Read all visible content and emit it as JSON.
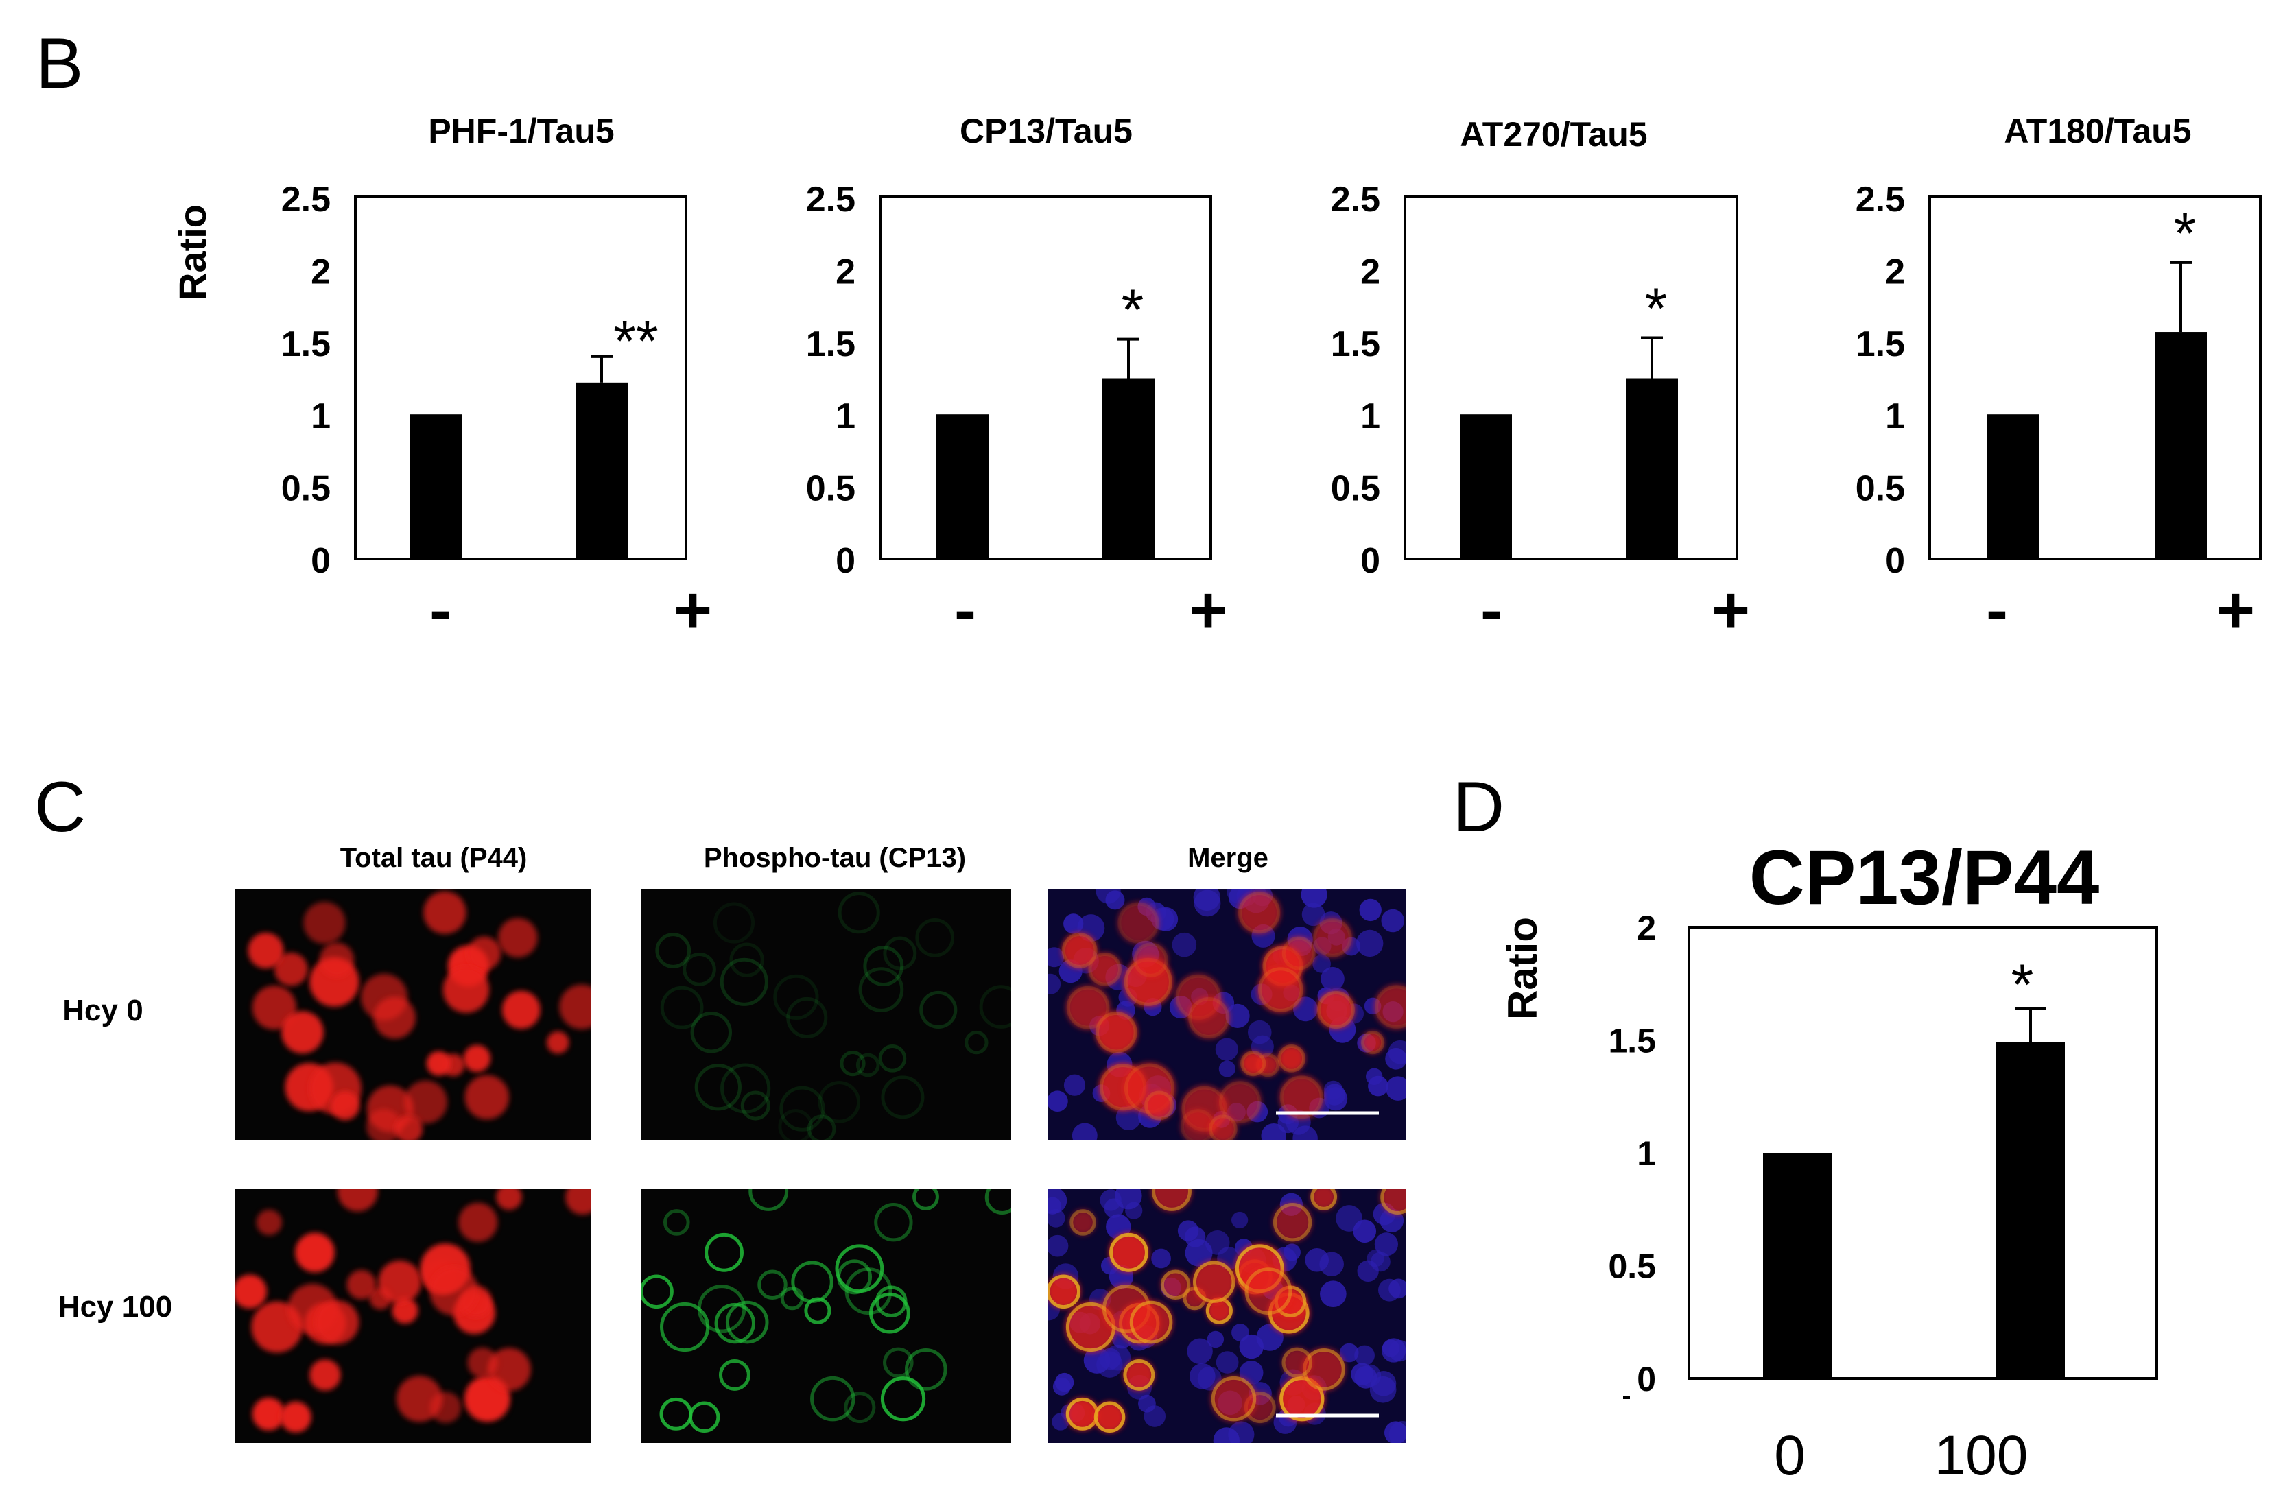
{
  "panels": {
    "b": {
      "letter": "B",
      "ylabel": "Ratio",
      "charts": [
        {
          "title": "PHF-1/Tau5",
          "significance": "**"
        },
        {
          "title": "CP13/Tau5",
          "significance": "*"
        },
        {
          "title": "AT270/Tau5",
          "significance": "*"
        },
        {
          "title": "AT180/Tau5",
          "significance": "*"
        }
      ]
    },
    "c": {
      "letter": "C",
      "columns": [
        "Total tau (P44)",
        "Phospho-tau (CP13)",
        "Merge"
      ],
      "rows": [
        "Hcy 0",
        "Hcy 100"
      ]
    },
    "d": {
      "letter": "D",
      "title": "CP13/P44",
      "ylabel": "Ratio",
      "significance": "*"
    }
  },
  "colors": {
    "bar": "#000000",
    "red_channel": "#e8231e",
    "green_channel": "#22c23a",
    "blue_channel": "#2d1fb0"
  },
  "chart_data": [
    {
      "type": "bar",
      "title": "PHF-1/Tau5",
      "ylabel": "Ratio",
      "categories": [
        "-",
        "+"
      ],
      "values": [
        1.0,
        1.22
      ],
      "error": [
        0,
        0.18
      ],
      "ylim": [
        0,
        2.5
      ],
      "yticks": [
        "0",
        "0.5",
        "1",
        "1.5",
        "2",
        "2.5"
      ],
      "annotations": [
        "**"
      ]
    },
    {
      "type": "bar",
      "title": "CP13/Tau5",
      "categories": [
        "-",
        "+"
      ],
      "values": [
        1.0,
        1.25
      ],
      "error": [
        0,
        0.27
      ],
      "ylim": [
        0,
        2.5
      ],
      "yticks": [
        "0",
        "0.5",
        "1",
        "1.5",
        "2",
        "2.5"
      ],
      "annotations": [
        "*"
      ]
    },
    {
      "type": "bar",
      "title": "AT270/Tau5",
      "categories": [
        "-",
        "+"
      ],
      "values": [
        1.0,
        1.25
      ],
      "error": [
        0,
        0.28
      ],
      "ylim": [
        0,
        2.5
      ],
      "yticks": [
        "0",
        "0.5",
        "1",
        "1.5",
        "2",
        "2.5"
      ],
      "annotations": [
        "*"
      ]
    },
    {
      "type": "bar",
      "title": "AT180/Tau5",
      "categories": [
        "-",
        "+"
      ],
      "values": [
        1.0,
        1.57
      ],
      "error": [
        0,
        0.48
      ],
      "ylim": [
        0,
        2.5
      ],
      "yticks": [
        "0",
        "0.5",
        "1",
        "1.5",
        "2",
        "2.5"
      ],
      "annotations": [
        "*"
      ]
    },
    {
      "type": "bar",
      "title": "CP13/P44",
      "ylabel": "Ratio",
      "categories": [
        "0",
        "100"
      ],
      "values": [
        1.0,
        1.49
      ],
      "error": [
        0,
        0.15
      ],
      "ylim": [
        0,
        2
      ],
      "yticks": [
        "0",
        "0.5",
        "1",
        "1.5",
        "2"
      ],
      "annotations": [
        "*"
      ]
    }
  ]
}
